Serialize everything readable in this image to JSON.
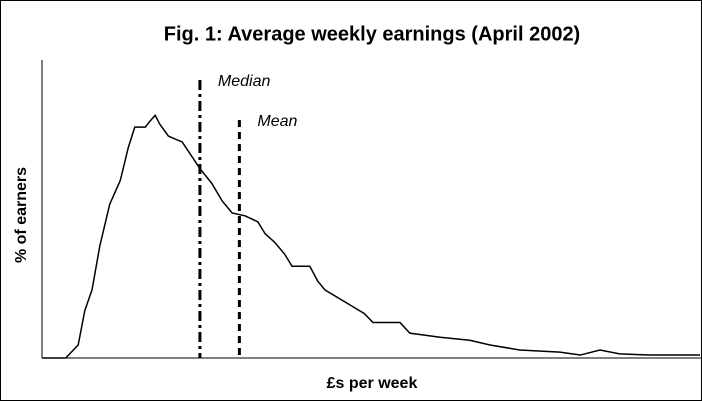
{
  "chart_data": {
    "type": "line",
    "title": "Fig. 1: Average weekly earnings (April 2002)",
    "x_label": "£s per week",
    "y_label": "% of earners",
    "xlim": [
      0,
      100
    ],
    "ylim": [
      0,
      100
    ],
    "x": [
      0,
      3.6,
      5.5,
      6.5,
      7.6,
      8.8,
      10.3,
      11.9,
      13.1,
      14.1,
      15.7,
      16.4,
      17.2,
      17.9,
      19.2,
      20.2,
      21.3,
      22.8,
      24,
      25.8,
      27.4,
      28.9,
      30.9,
      32.8,
      33.9,
      35.4,
      36.9,
      38,
      39.2,
      40.7,
      41.9,
      43,
      46,
      49,
      50.3,
      54.4,
      55.9,
      60.5,
      65,
      68.1,
      72.6,
      78.7,
      81.8,
      84.8,
      87.8,
      92.4,
      100
    ],
    "series": [
      {
        "color": "#000000",
        "values": [
          0,
          0,
          4.4,
          16,
          23,
          38,
          52,
          60,
          71,
          78,
          78,
          80,
          82,
          79,
          75,
          74,
          73,
          68,
          64,
          59,
          53,
          49,
          48,
          46,
          42,
          39,
          35,
          31,
          31,
          31,
          26,
          23,
          19,
          15,
          12,
          12,
          8.4,
          7,
          6,
          4.4,
          2.7,
          2,
          1,
          2.7,
          1.4,
          1,
          1
        ]
      }
    ],
    "annotations": [
      {
        "text": "Median",
        "x": 24,
        "style": "dashdot"
      },
      {
        "text": "Mean",
        "x": 30,
        "style": "dashed"
      }
    ]
  }
}
